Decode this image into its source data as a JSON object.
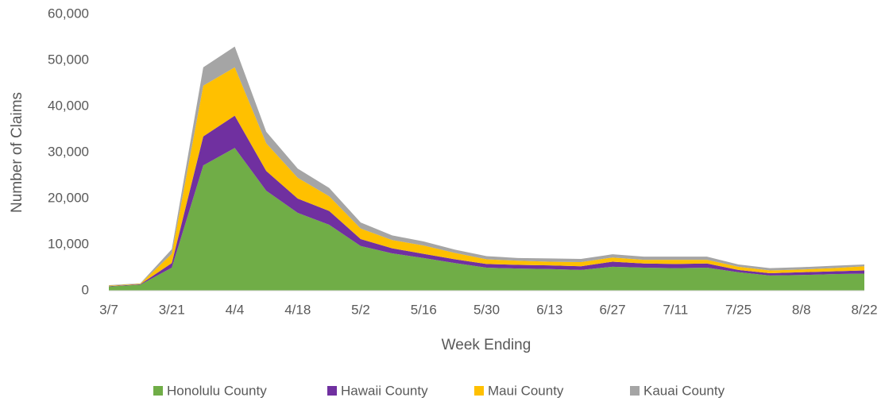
{
  "chart_data": {
    "type": "stacked_area",
    "x_label": "Week Ending",
    "y_label": "Number of Claims",
    "categories": [
      "3/7",
      null,
      "3/21",
      null,
      "4/4",
      null,
      "4/18",
      null,
      "5/2",
      null,
      "5/16",
      null,
      "5/30",
      null,
      "6/13",
      null,
      "6/27",
      null,
      "7/11",
      null,
      "7/25",
      null,
      "8/8",
      null,
      "8/22"
    ],
    "series": [
      {
        "name": "Honolulu County",
        "color": "#70ad47",
        "values": [
          900,
          1300,
          5000,
          27200,
          31000,
          21700,
          16900,
          14300,
          9700,
          8100,
          7100,
          6000,
          5000,
          4800,
          4700,
          4500,
          5200,
          5000,
          4900,
          5000,
          4000,
          3300,
          3400,
          3600,
          3700
        ]
      },
      {
        "name": "Hawaii County",
        "color": "#7030a0",
        "values": [
          100,
          100,
          1000,
          6300,
          7000,
          4300,
          3100,
          3000,
          1500,
          1100,
          900,
          800,
          800,
          800,
          800,
          800,
          1100,
          900,
          900,
          900,
          500,
          500,
          600,
          600,
          700
        ]
      },
      {
        "name": "Maui County",
        "color": "#ffc000",
        "values": [
          100,
          100,
          2000,
          11000,
          10500,
          6000,
          4500,
          3200,
          2300,
          1800,
          1800,
          1400,
          1000,
          900,
          800,
          900,
          900,
          800,
          900,
          800,
          700,
          600,
          600,
          700,
          900
        ]
      },
      {
        "name": "Kauai County",
        "color": "#a5a5a5",
        "values": [
          100,
          100,
          1000,
          4000,
          4500,
          2500,
          2000,
          1800,
          1300,
          1000,
          900,
          700,
          700,
          600,
          700,
          700,
          700,
          700,
          700,
          700,
          500,
          500,
          500,
          500,
          400
        ]
      }
    ],
    "ylim": [
      0,
      60000
    ],
    "yticks": [
      0,
      {
        "value": 10000,
        "label": "10,000"
      },
      {
        "value": 20000,
        "label": "20,000"
      },
      {
        "value": 30000,
        "label": "30,000"
      },
      {
        "value": 40000,
        "label": "40,000"
      },
      {
        "value": 50000,
        "label": "50,000"
      },
      {
        "value": 60000,
        "label": "60,000"
      }
    ],
    "legend": "bottom"
  }
}
